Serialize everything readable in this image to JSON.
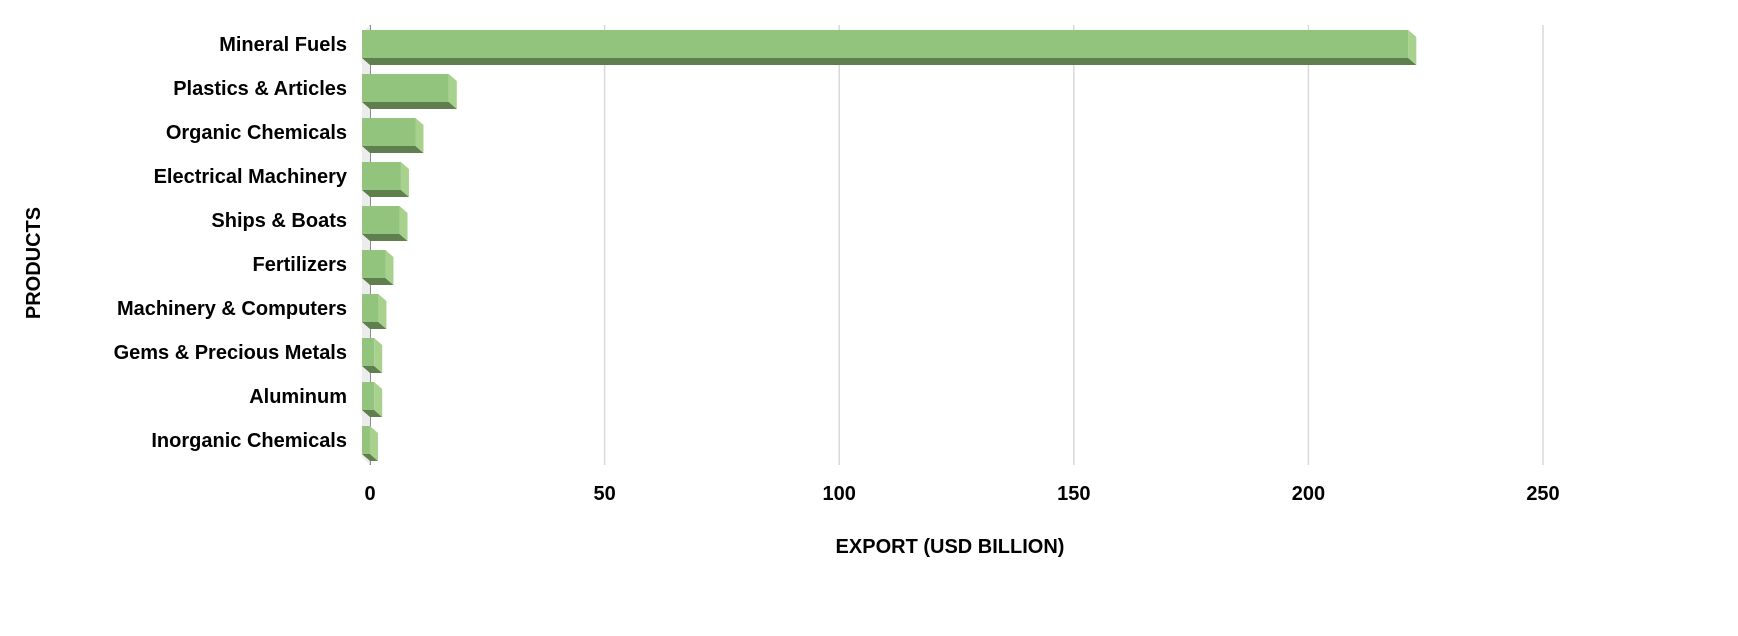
{
  "chart_data": {
    "type": "bar",
    "orientation": "horizontal",
    "style": "3d",
    "title": "",
    "xlabel": "EXPORT (USD BILLION)",
    "ylabel": "PRODUCTS",
    "xlim": [
      0,
      250
    ],
    "xticks": [
      "0",
      "50",
      "100",
      "150",
      "200",
      "250"
    ],
    "grid": true,
    "legend": "none",
    "categories": [
      "Mineral Fuels",
      "Plastics & Articles",
      "Organic Chemicals",
      "Electrical Machinery",
      "Ships & Boats",
      "Fertilizers",
      "Machinery & Computers",
      "Gems & Precious Metals",
      "Aluminum",
      "Inorganic Chemicals"
    ],
    "values": [
      223,
      18.5,
      11.4,
      8.3,
      8.0,
      5.0,
      3.5,
      2.6,
      2.6,
      1.7
    ],
    "colors": {
      "front": "#93c47d",
      "side": "#a9d18e",
      "bottom": "#5f7f4f",
      "grid": "#d9d9d9",
      "wall": "#ececec"
    }
  }
}
